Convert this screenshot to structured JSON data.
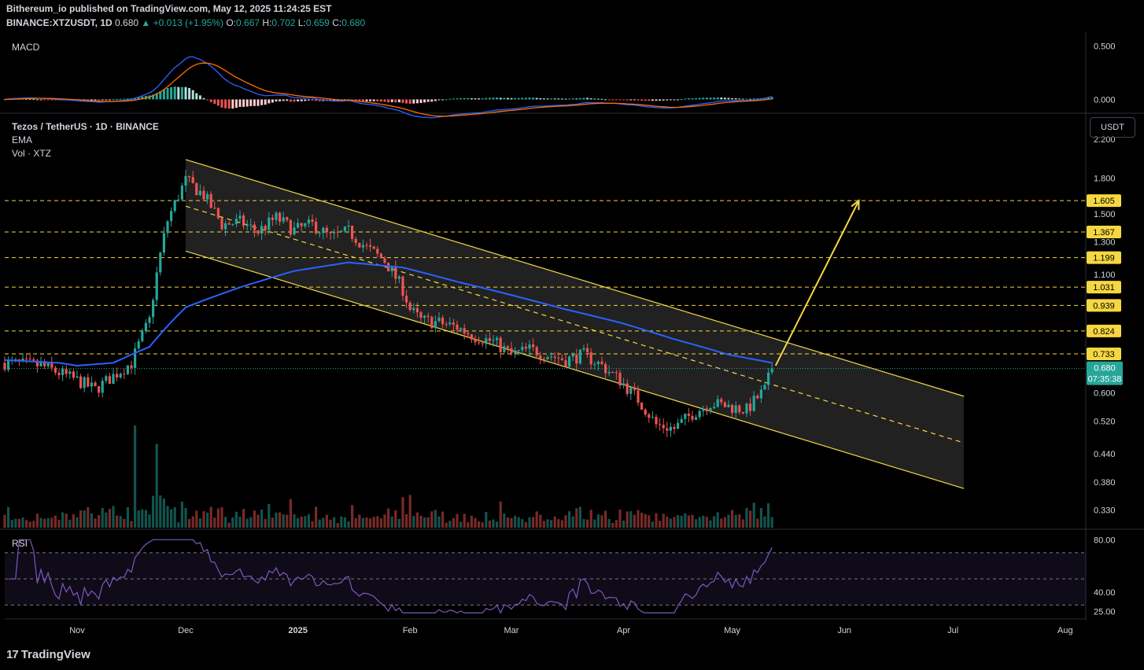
{
  "header": {
    "publisher_line": "Bithereum_io published on TradingView.com, May 12, 2025 11:24:25 EST",
    "symbol": "BINANCE:XTZUSDT, 1D",
    "last": "0.680",
    "change": "+0.013 (+1.95%)",
    "o_label": "O:",
    "o": "0.667",
    "h_label": "H:",
    "h": "0.702",
    "l_label": "L:",
    "l": "0.659",
    "c_label": "C:",
    "c": "0.680"
  },
  "panes": {
    "macd_label": "MACD",
    "main_title": "Tezos / TetherUS · 1D · BINANCE",
    "ema_label": "EMA",
    "vol_label": "Vol · XTZ",
    "rsi_label": "RSI",
    "currency_button": "USDT"
  },
  "colors": {
    "up": "#26a69a",
    "down": "#ef5350",
    "ema": "#2962ff",
    "channel": "#f5d742",
    "macd_line": "#2962ff",
    "signal_line": "#ff6d00",
    "rsi": "#7e57c2",
    "level": "#f5d742"
  },
  "footer": {
    "brand": "TradingView"
  },
  "chart_data": {
    "type": "candlestick",
    "title": "Tezos / TetherUS · 1D · BINANCE",
    "x_ticks": [
      "Nov",
      "Dec",
      "2025",
      "Feb",
      "Mar",
      "Apr",
      "May",
      "Jun",
      "Jul",
      "Aug"
    ],
    "x_tick_days": [
      0,
      30,
      61,
      92,
      120,
      151,
      181,
      212,
      242,
      273
    ],
    "price_axis": {
      "scale": "log",
      "range": [
        0.3,
        2.45
      ],
      "ticks": [
        "2.200",
        "1.800",
        "1.500",
        "1.300",
        "1.100",
        "0.600",
        "0.520",
        "0.440",
        "0.380",
        "0.330"
      ]
    },
    "key_levels": [
      "1.605",
      "1.367",
      "1.199",
      "1.031",
      "0.939",
      "0.824",
      "0.733"
    ],
    "current_price": {
      "value": "0.680",
      "countdown": "07:35:38"
    },
    "series_ohlc_anchor_days": [
      -20,
      -10,
      0,
      5,
      15,
      20,
      25,
      30,
      35,
      40,
      45,
      50,
      55,
      60,
      65,
      70,
      75,
      80,
      85,
      90,
      92,
      95,
      100,
      105,
      110,
      115,
      120,
      125,
      130,
      135,
      140,
      145,
      150,
      155,
      160,
      165,
      170,
      175,
      180,
      185,
      190,
      192
    ],
    "series_close_anchor_values": [
      0.7,
      0.69,
      0.64,
      0.61,
      0.7,
      0.87,
      1.45,
      1.78,
      1.65,
      1.42,
      1.44,
      1.37,
      1.47,
      1.38,
      1.42,
      1.33,
      1.37,
      1.26,
      1.18,
      1.02,
      0.92,
      0.87,
      0.86,
      0.84,
      0.8,
      0.78,
      0.73,
      0.75,
      0.73,
      0.71,
      0.73,
      0.69,
      0.64,
      0.58,
      0.51,
      0.5,
      0.54,
      0.57,
      0.56,
      0.55,
      0.61,
      0.68
    ],
    "ema": {
      "name": "EMA",
      "anchor_days": [
        -20,
        -5,
        0,
        10,
        20,
        30,
        45,
        60,
        75,
        90,
        105,
        120,
        135,
        150,
        165,
        180,
        192
      ],
      "values": [
        0.71,
        0.7,
        0.69,
        0.7,
        0.76,
        0.93,
        1.03,
        1.12,
        1.17,
        1.14,
        1.06,
        0.99,
        0.92,
        0.86,
        0.79,
        0.73,
        0.7
      ]
    },
    "channel": {
      "upper": {
        "from_day": 30,
        "from_value": 1.98,
        "to_day": 245,
        "to_value": 0.59
      },
      "middle": {
        "from_day": 30,
        "from_value": 1.56,
        "to_day": 245,
        "to_value": 0.465
      },
      "lower": {
        "from_day": 30,
        "from_value": 1.24,
        "to_day": 245,
        "to_value": 0.368
      }
    },
    "projection": {
      "from_day": 193,
      "from_value": 0.69,
      "to_day": 216,
      "to_value": 1.605
    },
    "macd": {
      "axis_ticks": [
        "0.500",
        "0.000"
      ],
      "range": [
        -0.1,
        0.6
      ]
    },
    "rsi": {
      "axis_ticks": [
        "80.00",
        "40.00",
        "25.00"
      ],
      "range": [
        20,
        85
      ],
      "bands": [
        70,
        30
      ],
      "last": 74
    },
    "volume": {
      "spike_days": [
        16,
        22,
        59,
        92
      ],
      "spike_relative": [
        1.0,
        0.82,
        0.28,
        0.32
      ]
    }
  }
}
